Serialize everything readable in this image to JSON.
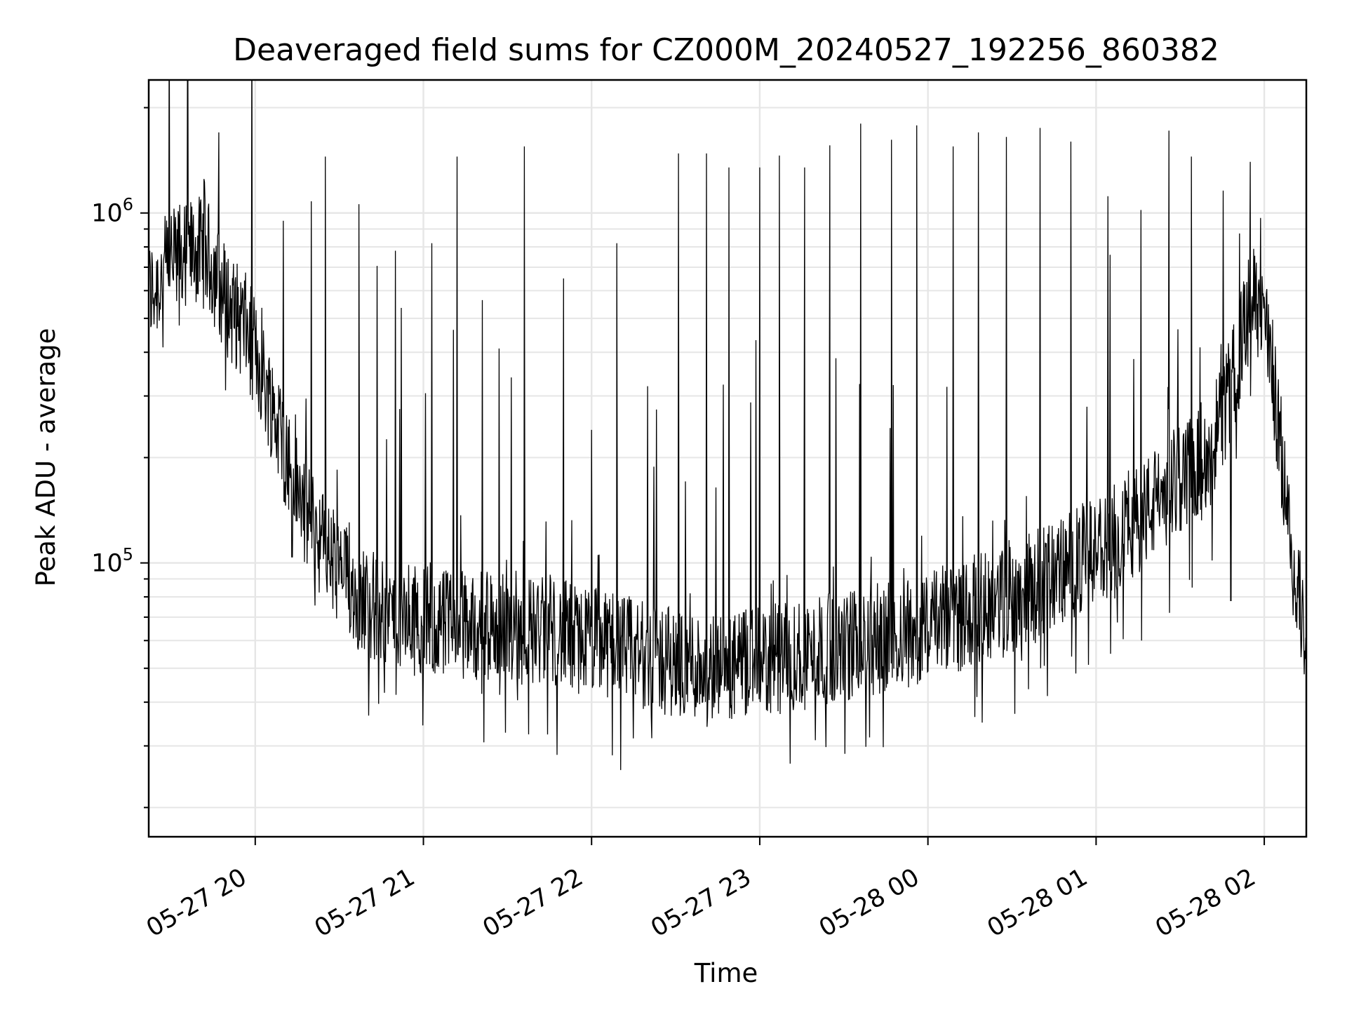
{
  "chart_data": {
    "type": "line",
    "title": "Deaveraged field sums for CZ000M_20240527_192256_860382",
    "xlabel": "Time",
    "ylabel": "Peak ADU - average",
    "yscale": "log",
    "ylim": [
      16500,
      2400000
    ],
    "xlim": [
      "2024-05-27 19:22",
      "2024-05-28 02:15"
    ],
    "grid": true,
    "line_color": "#000000",
    "x_ticks": [
      {
        "value": "2024-05-27 20:00",
        "label": "05-27 20"
      },
      {
        "value": "2024-05-27 21:00",
        "label": "05-27 21"
      },
      {
        "value": "2024-05-27 22:00",
        "label": "05-27 22"
      },
      {
        "value": "2024-05-27 23:00",
        "label": "05-27 23"
      },
      {
        "value": "2024-05-28 00:00",
        "label": "05-28 00"
      },
      {
        "value": "2024-05-28 01:00",
        "label": "05-28 01"
      },
      {
        "value": "2024-05-28 02:00",
        "label": "05-28 02"
      }
    ],
    "y_ticks": [
      {
        "value": 100000,
        "base": "10",
        "exp": "5"
      },
      {
        "value": 1000000,
        "base": "10",
        "exp": "6"
      }
    ],
    "series": [
      {
        "x": [
          "2024-05-27 19:22",
          "2024-05-27 19:26",
          "2024-05-27 19:30",
          "2024-05-27 19:35",
          "2024-05-27 19:39",
          "2024-05-27 19:43",
          "2024-05-27 19:48",
          "2024-05-27 19:52",
          "2024-05-27 19:56",
          "2024-05-27 20:00",
          "2024-05-27 20:05",
          "2024-05-27 20:10",
          "2024-05-27 20:15",
          "2024-05-27 20:20",
          "2024-05-27 20:25",
          "2024-05-27 20:30",
          "2024-05-27 20:35",
          "2024-05-27 20:40",
          "2024-05-27 20:45",
          "2024-05-27 20:50",
          "2024-05-27 20:55",
          "2024-05-27 21:00",
          "2024-05-27 21:10",
          "2024-05-27 21:20",
          "2024-05-27 21:30",
          "2024-05-27 21:40",
          "2024-05-27 21:50",
          "2024-05-27 22:00",
          "2024-05-27 22:10",
          "2024-05-27 22:20",
          "2024-05-27 22:30",
          "2024-05-27 22:40",
          "2024-05-27 22:50",
          "2024-05-27 23:00",
          "2024-05-27 23:10",
          "2024-05-27 23:20",
          "2024-05-27 23:30",
          "2024-05-27 23:40",
          "2024-05-27 23:50",
          "2024-05-28 00:00",
          "2024-05-28 00:10",
          "2024-05-28 00:20",
          "2024-05-28 00:30",
          "2024-05-28 00:40",
          "2024-05-28 00:50",
          "2024-05-28 01:00",
          "2024-05-28 01:10",
          "2024-05-28 01:20",
          "2024-05-28 01:30",
          "2024-05-28 01:40",
          "2024-05-28 01:45",
          "2024-05-28 01:50",
          "2024-05-28 01:55",
          "2024-05-28 02:00",
          "2024-05-28 02:05",
          "2024-05-28 02:10",
          "2024-05-28 02:15"
        ],
        "values": [
          580000,
          650000,
          720000,
          760000,
          780000,
          760000,
          600000,
          520000,
          480000,
          400000,
          300000,
          220000,
          160000,
          130000,
          110000,
          95000,
          85000,
          78000,
          72000,
          70000,
          69000,
          68000,
          67000,
          66000,
          65000,
          64000,
          62000,
          60000,
          57000,
          54000,
          52000,
          51000,
          50000,
          52000,
          54000,
          56000,
          58000,
          60000,
          63000,
          66000,
          70000,
          75000,
          80000,
          88000,
          97000,
          108000,
          125000,
          145000,
          175000,
          210000,
          260000,
          360000,
          560000,
          520000,
          250000,
          100000,
          60000
        ],
        "spike_pairs": [
          [
            "2024-05-27 19:47",
            1700000,
            480000
          ],
          [
            "2024-05-27 20:10",
            950000,
            150000
          ],
          [
            "2024-05-27 20:13",
            104000,
            104000
          ],
          [
            "2024-05-27 20:20",
            1080000,
            110000
          ],
          [
            "2024-05-27 20:25",
            1450000,
            95000
          ],
          [
            "2024-05-27 20:37",
            1060000,
            60000
          ],
          [
            "2024-05-27 20:50",
            780000,
            42000
          ],
          [
            "2024-05-27 21:03",
            820000,
            50000
          ],
          [
            "2024-05-27 21:12",
            1450000,
            55000
          ],
          [
            "2024-05-27 21:27",
            410000,
            42000
          ],
          [
            "2024-05-27 21:36",
            1550000,
            55000
          ],
          [
            "2024-05-27 21:50",
            650000,
            48000
          ],
          [
            "2024-05-27 22:00",
            240000,
            44000
          ],
          [
            "2024-05-27 22:09",
            820000,
            46000
          ],
          [
            "2024-05-27 22:20",
            320000,
            50000
          ],
          [
            "2024-05-27 22:31",
            1480000,
            42000
          ],
          [
            "2024-05-27 22:41",
            1480000,
            34000
          ],
          [
            "2024-05-27 22:49",
            1350000,
            36000
          ],
          [
            "2024-05-27 23:00",
            1350000,
            40000
          ],
          [
            "2024-05-27 23:07",
            1460000,
            37000
          ],
          [
            "2024-05-27 23:16",
            1350000,
            38000
          ],
          [
            "2024-05-27 23:25",
            1560000,
            42000
          ],
          [
            "2024-05-27 23:36",
            1800000,
            45000
          ],
          [
            "2024-05-27 23:47",
            1620000,
            47000
          ],
          [
            "2024-05-27 23:56",
            1780000,
            45000
          ],
          [
            "2024-05-28 00:09",
            1550000,
            52000
          ],
          [
            "2024-05-28 00:18",
            1700000,
            55000
          ],
          [
            "2024-05-28 00:28",
            1650000,
            56000
          ],
          [
            "2024-05-28 00:40",
            1750000,
            50000
          ],
          [
            "2024-05-28 00:51",
            1600000,
            54000
          ],
          [
            "2024-05-28 01:05",
            760000,
            55000
          ],
          [
            "2024-05-28 01:16",
            1020000,
            60000
          ],
          [
            "2024-05-28 01:26",
            1720000,
            72000
          ],
          [
            "2024-05-28 01:34",
            1450000,
            85000
          ],
          [
            "2024-05-28 01:48",
            78000,
            78000
          ],
          [
            "2024-05-28 01:55",
            1400000,
            300000
          ]
        ]
      }
    ]
  }
}
